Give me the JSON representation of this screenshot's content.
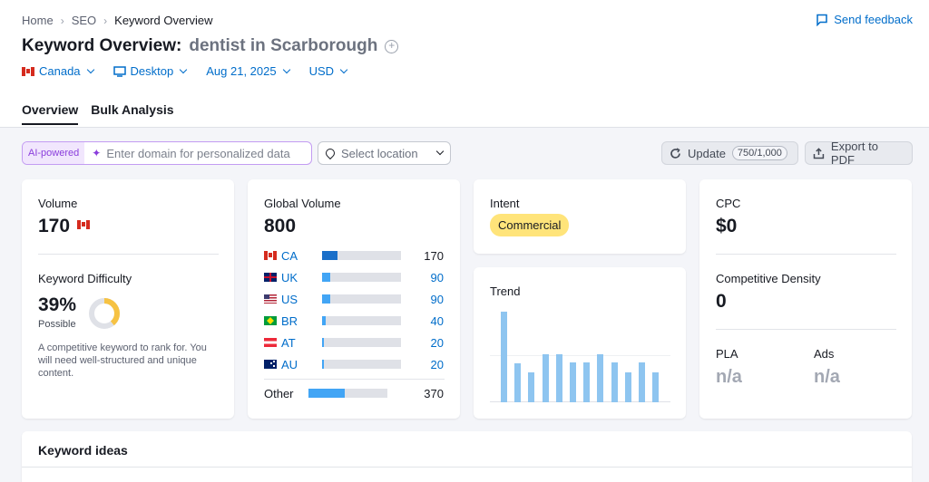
{
  "breadcrumb": {
    "items": [
      "Home",
      "SEO",
      "Keyword Overview"
    ]
  },
  "header": {
    "feedback_label": "Send feedback",
    "title": "Keyword Overview:",
    "keyword": "dentist in Scarborough",
    "add_icon": "+"
  },
  "filters": {
    "country": "Canada",
    "device": "Desktop",
    "date": "Aug 21, 2025",
    "currency": "USD"
  },
  "tabs": [
    "Overview",
    "Bulk Analysis"
  ],
  "toolbar": {
    "ai_badge": "AI-powered",
    "domain_placeholder": "Enter domain for personalized data",
    "location_placeholder": "Select location",
    "update_label": "Update",
    "update_count": "750/1,000",
    "export_label": "Export to PDF"
  },
  "volume": {
    "label": "Volume",
    "value": "170",
    "kd_label": "Keyword Difficulty",
    "kd_value": "39%",
    "kd_percent": 39,
    "kd_level": "Possible",
    "kd_description": "A competitive keyword to rank for. You will need well-structured and unique content."
  },
  "global_volume": {
    "label": "Global Volume",
    "value": "800",
    "rows": [
      {
        "code": "CA",
        "value": "170",
        "share": 0.2
      },
      {
        "code": "UK",
        "value": "90",
        "share": 0.1
      },
      {
        "code": "US",
        "value": "90",
        "share": 0.1
      },
      {
        "code": "BR",
        "value": "40",
        "share": 0.05
      },
      {
        "code": "AT",
        "value": "20",
        "share": 0.025
      },
      {
        "code": "AU",
        "value": "20",
        "share": 0.025
      }
    ],
    "other_label": "Other",
    "other_value": "370",
    "other_share": 0.46
  },
  "intent": {
    "label": "Intent",
    "value": "Commercial"
  },
  "trend": {
    "label": "Trend",
    "values": [
      1.0,
      0.43,
      0.33,
      0.53,
      0.53,
      0.44,
      0.44,
      0.53,
      0.44,
      0.33,
      0.44,
      0.33
    ]
  },
  "cpc": {
    "label": "CPC",
    "value": "$0",
    "density_label": "Competitive Density",
    "density_value": "0",
    "pla_label": "PLA",
    "pla_value": "n/a",
    "ads_label": "Ads",
    "ads_value": "n/a"
  },
  "keyword_ideas": {
    "label": "Keyword ideas"
  },
  "colors": {
    "accent": "#006dca",
    "bar": "#42a5f5",
    "bar_ca": "#1a6fc9",
    "trend": "#8ec5f0",
    "kd_ring": "#f6c243",
    "intent_badge": "#ffe47a"
  }
}
